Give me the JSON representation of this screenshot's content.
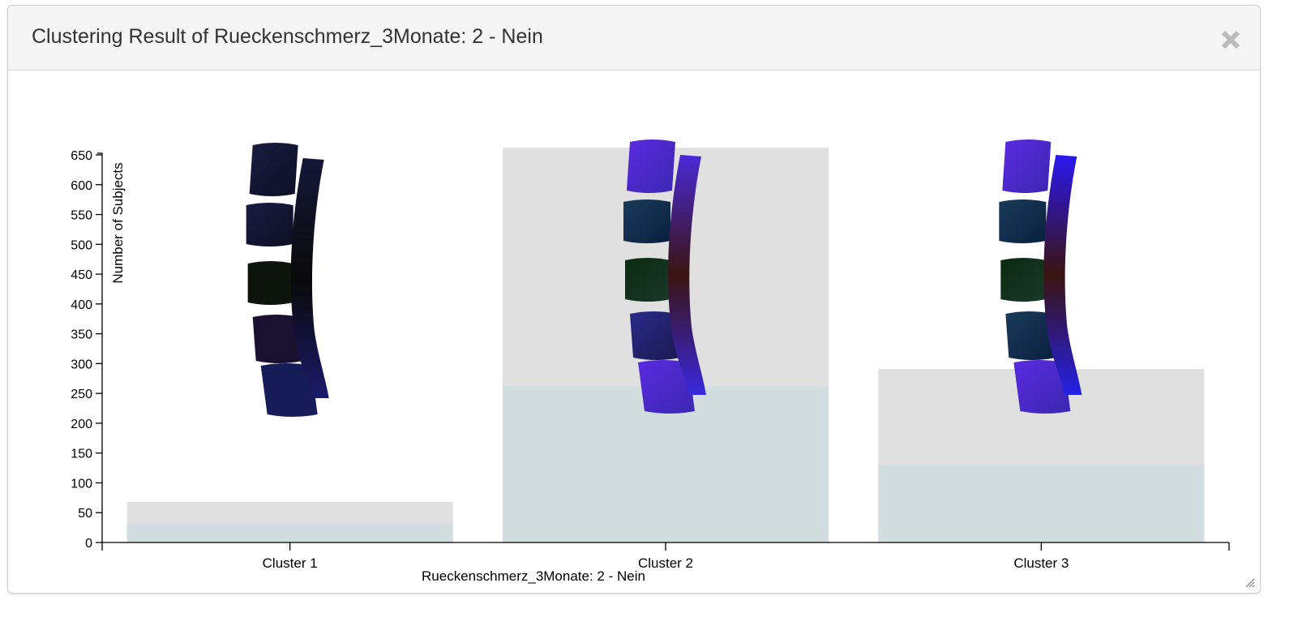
{
  "dialog": {
    "title": "Clustering Result of Rueckenschmerz_3Monate: 2 - Nein",
    "close_icon": "close-icon"
  },
  "colors": {
    "total_bar": "#e0e0e0",
    "subset_bar": "#d2dde0",
    "axis": "#000000"
  },
  "chart_data": {
    "type": "bar",
    "ylabel": "Number of Subjects",
    "xlabel": "Rueckenschmerz_3Monate: 2 - Nein",
    "ylim": [
      0,
      670
    ],
    "yticks": [
      0,
      50,
      100,
      150,
      200,
      250,
      300,
      350,
      400,
      450,
      500,
      550,
      600,
      650
    ],
    "categories": [
      "Cluster 1",
      "Cluster 2",
      "Cluster 3"
    ],
    "series": [
      {
        "values": [
          68,
          662,
          291
        ]
      },
      {
        "values": [
          32,
          262,
          130
        ]
      }
    ],
    "grid": false,
    "legend": "none",
    "cluster_images": [
      "spine-model-cluster-1",
      "spine-model-cluster-2",
      "spine-model-cluster-3"
    ]
  }
}
